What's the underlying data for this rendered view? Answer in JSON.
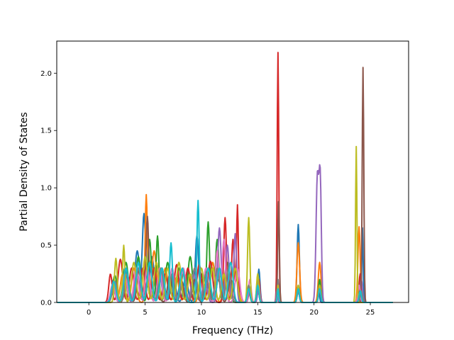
{
  "chart_data": {
    "type": "line",
    "title": "",
    "xlabel": "Frequency (THz)",
    "ylabel": "Partial Density of States",
    "xlim": [
      -2.85,
      28.4
    ],
    "ylim": [
      0.0,
      2.28
    ],
    "xticks": [
      0,
      5,
      10,
      15,
      20,
      25
    ],
    "xtick_labels": [
      "0",
      "5",
      "10",
      "15",
      "20",
      "25"
    ],
    "yticks": [
      0.0,
      0.5,
      1.0,
      1.5,
      2.0
    ],
    "ytick_labels": [
      "0.0",
      "0.5",
      "1.0",
      "1.5",
      "2.0"
    ],
    "grid": false,
    "legend": "none",
    "x_range": [
      -2.8,
      27.0
    ],
    "series": [
      {
        "color": "#1f77b4",
        "peaks": [
          [
            2.2,
            0.22,
            0.2
          ],
          [
            3.2,
            0.3,
            0.2
          ],
          [
            4.3,
            0.45,
            0.2
          ],
          [
            4.9,
            0.77,
            0.15
          ],
          [
            5.6,
            0.4,
            0.2
          ],
          [
            6.5,
            0.3,
            0.2
          ],
          [
            7.5,
            0.25,
            0.2
          ],
          [
            8.6,
            0.22,
            0.2
          ],
          [
            9.6,
            0.58,
            0.15
          ],
          [
            10.6,
            0.25,
            0.2
          ],
          [
            11.6,
            0.3,
            0.2
          ],
          [
            12.6,
            0.2,
            0.2
          ],
          [
            14.2,
            0.12,
            0.12
          ],
          [
            15.1,
            0.29,
            0.1
          ],
          [
            16.8,
            0.15,
            0.06
          ],
          [
            18.6,
            0.68,
            0.1
          ],
          [
            20.4,
            0.12,
            0.08
          ],
          [
            24.3,
            0.65,
            0.06
          ]
        ]
      },
      {
        "color": "#ff7f0e",
        "peaks": [
          [
            2.2,
            0.15,
            0.2
          ],
          [
            3.0,
            0.25,
            0.2
          ],
          [
            4.0,
            0.3,
            0.2
          ],
          [
            5.1,
            0.94,
            0.1
          ],
          [
            5.8,
            0.45,
            0.2
          ],
          [
            6.8,
            0.3,
            0.2
          ],
          [
            7.8,
            0.22,
            0.2
          ],
          [
            8.8,
            0.3,
            0.2
          ],
          [
            10.0,
            0.2,
            0.2
          ],
          [
            11.0,
            0.35,
            0.2
          ],
          [
            12.2,
            0.3,
            0.2
          ],
          [
            13.1,
            0.2,
            0.2
          ],
          [
            14.2,
            0.1,
            0.12
          ],
          [
            15.0,
            0.2,
            0.1
          ],
          [
            16.7,
            0.2,
            0.06
          ],
          [
            18.6,
            0.52,
            0.12
          ],
          [
            20.5,
            0.35,
            0.12
          ],
          [
            24.0,
            0.66,
            0.1
          ]
        ]
      },
      {
        "color": "#2ca02c",
        "peaks": [
          [
            2.3,
            0.25,
            0.2
          ],
          [
            3.3,
            0.35,
            0.2
          ],
          [
            4.4,
            0.4,
            0.2
          ],
          [
            5.4,
            0.55,
            0.15
          ],
          [
            6.1,
            0.58,
            0.12
          ],
          [
            7.0,
            0.35,
            0.2
          ],
          [
            8.0,
            0.3,
            0.2
          ],
          [
            9.0,
            0.4,
            0.2
          ],
          [
            10.0,
            0.25,
            0.2
          ],
          [
            10.6,
            0.7,
            0.12
          ],
          [
            11.4,
            0.55,
            0.15
          ],
          [
            12.3,
            0.35,
            0.2
          ],
          [
            14.2,
            0.1,
            0.12
          ],
          [
            15.0,
            0.15,
            0.1
          ],
          [
            16.8,
            0.1,
            0.06
          ],
          [
            18.6,
            0.15,
            0.1
          ],
          [
            20.5,
            0.2,
            0.1
          ],
          [
            24.1,
            0.2,
            0.1
          ]
        ]
      },
      {
        "color": "#d62728",
        "peaks": [
          [
            1.9,
            0.32,
            0.15
          ],
          [
            2.8,
            0.38,
            0.2
          ],
          [
            3.8,
            0.3,
            0.2
          ],
          [
            4.8,
            0.3,
            0.2
          ],
          [
            5.8,
            0.3,
            0.2
          ],
          [
            6.8,
            0.25,
            0.2
          ],
          [
            7.8,
            0.33,
            0.2
          ],
          [
            8.8,
            0.3,
            0.2
          ],
          [
            9.8,
            0.33,
            0.2
          ],
          [
            10.8,
            0.36,
            0.2
          ],
          [
            12.1,
            0.74,
            0.12
          ],
          [
            12.8,
            0.55,
            0.12
          ],
          [
            13.2,
            0.85,
            0.08
          ],
          [
            14.3,
            0.1,
            0.12
          ],
          [
            15.1,
            0.2,
            0.1
          ],
          [
            16.8,
            2.18,
            0.07
          ],
          [
            18.6,
            0.12,
            0.1
          ],
          [
            20.5,
            0.15,
            0.1
          ],
          [
            24.1,
            0.25,
            0.1
          ]
        ]
      },
      {
        "color": "#9467bd",
        "peaks": [
          [
            2.1,
            0.15,
            0.2
          ],
          [
            3.2,
            0.2,
            0.2
          ],
          [
            4.3,
            0.25,
            0.2
          ],
          [
            5.3,
            0.2,
            0.2
          ],
          [
            6.3,
            0.22,
            0.2
          ],
          [
            7.3,
            0.2,
            0.2
          ],
          [
            8.3,
            0.15,
            0.2
          ],
          [
            9.3,
            0.25,
            0.2
          ],
          [
            10.3,
            0.2,
            0.2
          ],
          [
            11.6,
            0.65,
            0.15
          ],
          [
            12.3,
            0.5,
            0.15
          ],
          [
            13.0,
            0.6,
            0.12
          ],
          [
            14.3,
            0.12,
            0.12
          ],
          [
            15.1,
            0.15,
            0.1
          ],
          [
            16.7,
            0.12,
            0.06
          ],
          [
            18.6,
            0.1,
            0.1
          ],
          [
            20.3,
            1.1,
            0.12
          ],
          [
            20.55,
            1.05,
            0.1
          ],
          [
            24.2,
            0.2,
            0.1
          ]
        ]
      },
      {
        "color": "#8c564b",
        "peaks": [
          [
            2.2,
            0.12,
            0.2
          ],
          [
            3.4,
            0.2,
            0.2
          ],
          [
            4.5,
            0.3,
            0.2
          ],
          [
            5.2,
            0.75,
            0.12
          ],
          [
            6.0,
            0.35,
            0.2
          ],
          [
            7.2,
            0.25,
            0.2
          ],
          [
            8.2,
            0.2,
            0.2
          ],
          [
            9.4,
            0.2,
            0.2
          ],
          [
            10.5,
            0.2,
            0.2
          ],
          [
            11.5,
            0.2,
            0.2
          ],
          [
            12.6,
            0.2,
            0.2
          ],
          [
            14.2,
            0.1,
            0.12
          ],
          [
            15.0,
            0.15,
            0.1
          ],
          [
            16.85,
            0.88,
            0.07
          ],
          [
            18.6,
            0.1,
            0.1
          ],
          [
            20.5,
            0.1,
            0.1
          ],
          [
            24.35,
            2.05,
            0.07
          ]
        ]
      },
      {
        "color": "#e377c2",
        "peaks": [
          [
            2.1,
            0.18,
            0.2
          ],
          [
            3.2,
            0.25,
            0.2
          ],
          [
            4.2,
            0.3,
            0.2
          ],
          [
            5.2,
            0.3,
            0.2
          ],
          [
            6.3,
            0.3,
            0.2
          ],
          [
            7.4,
            0.3,
            0.2
          ],
          [
            8.4,
            0.3,
            0.2
          ],
          [
            9.4,
            0.3,
            0.2
          ],
          [
            10.4,
            0.3,
            0.2
          ],
          [
            11.4,
            0.45,
            0.15
          ],
          [
            12.0,
            0.55,
            0.15
          ],
          [
            13.2,
            0.3,
            0.2
          ],
          [
            14.3,
            0.2,
            0.12
          ],
          [
            15.0,
            0.2,
            0.1
          ],
          [
            16.8,
            0.1,
            0.06
          ],
          [
            18.6,
            0.1,
            0.1
          ],
          [
            20.5,
            0.12,
            0.1
          ],
          [
            24.0,
            0.15,
            0.1
          ]
        ]
      },
      {
        "color": "#7f7f7f",
        "peaks": [
          [
            2.3,
            0.2,
            0.2
          ],
          [
            3.4,
            0.25,
            0.2
          ],
          [
            4.4,
            0.3,
            0.2
          ],
          [
            5.4,
            0.35,
            0.2
          ],
          [
            6.4,
            0.3,
            0.2
          ],
          [
            7.4,
            0.25,
            0.2
          ],
          [
            8.4,
            0.25,
            0.2
          ],
          [
            9.4,
            0.3,
            0.2
          ],
          [
            10.4,
            0.25,
            0.2
          ],
          [
            11.4,
            0.3,
            0.2
          ],
          [
            12.4,
            0.3,
            0.2
          ],
          [
            14.2,
            0.15,
            0.12
          ],
          [
            15.0,
            0.2,
            0.1
          ],
          [
            16.8,
            0.2,
            0.06
          ],
          [
            18.6,
            0.1,
            0.1
          ],
          [
            20.5,
            0.15,
            0.1
          ],
          [
            24.2,
            0.1,
            0.1
          ]
        ]
      },
      {
        "color": "#bcbd22",
        "peaks": [
          [
            2.4,
            0.4,
            0.12
          ],
          [
            3.1,
            0.5,
            0.1
          ],
          [
            4.0,
            0.35,
            0.2
          ],
          [
            5.0,
            0.4,
            0.2
          ],
          [
            6.0,
            0.35,
            0.2
          ],
          [
            7.0,
            0.3,
            0.2
          ],
          [
            8.0,
            0.35,
            0.2
          ],
          [
            9.0,
            0.25,
            0.2
          ],
          [
            10.0,
            0.3,
            0.2
          ],
          [
            11.0,
            0.3,
            0.2
          ],
          [
            12.0,
            0.25,
            0.2
          ],
          [
            13.0,
            0.3,
            0.2
          ],
          [
            14.2,
            0.74,
            0.1
          ],
          [
            15.0,
            0.25,
            0.1
          ],
          [
            16.8,
            0.15,
            0.06
          ],
          [
            18.6,
            0.15,
            0.1
          ],
          [
            20.5,
            0.15,
            0.1
          ],
          [
            23.75,
            1.36,
            0.06
          ]
        ]
      },
      {
        "color": "#17becf",
        "peaks": [
          [
            2.2,
            0.2,
            0.2
          ],
          [
            3.3,
            0.3,
            0.2
          ],
          [
            4.4,
            0.35,
            0.2
          ],
          [
            5.4,
            0.35,
            0.2
          ],
          [
            6.5,
            0.3,
            0.2
          ],
          [
            7.3,
            0.52,
            0.12
          ],
          [
            8.3,
            0.3,
            0.2
          ],
          [
            9.7,
            0.89,
            0.1
          ],
          [
            10.6,
            0.3,
            0.2
          ],
          [
            11.6,
            0.3,
            0.2
          ],
          [
            12.6,
            0.35,
            0.2
          ],
          [
            14.2,
            0.12,
            0.12
          ],
          [
            15.0,
            0.15,
            0.1
          ],
          [
            16.8,
            0.12,
            0.06
          ],
          [
            18.6,
            0.12,
            0.1
          ],
          [
            20.5,
            0.12,
            0.1
          ],
          [
            24.1,
            0.1,
            0.1
          ]
        ]
      }
    ]
  }
}
